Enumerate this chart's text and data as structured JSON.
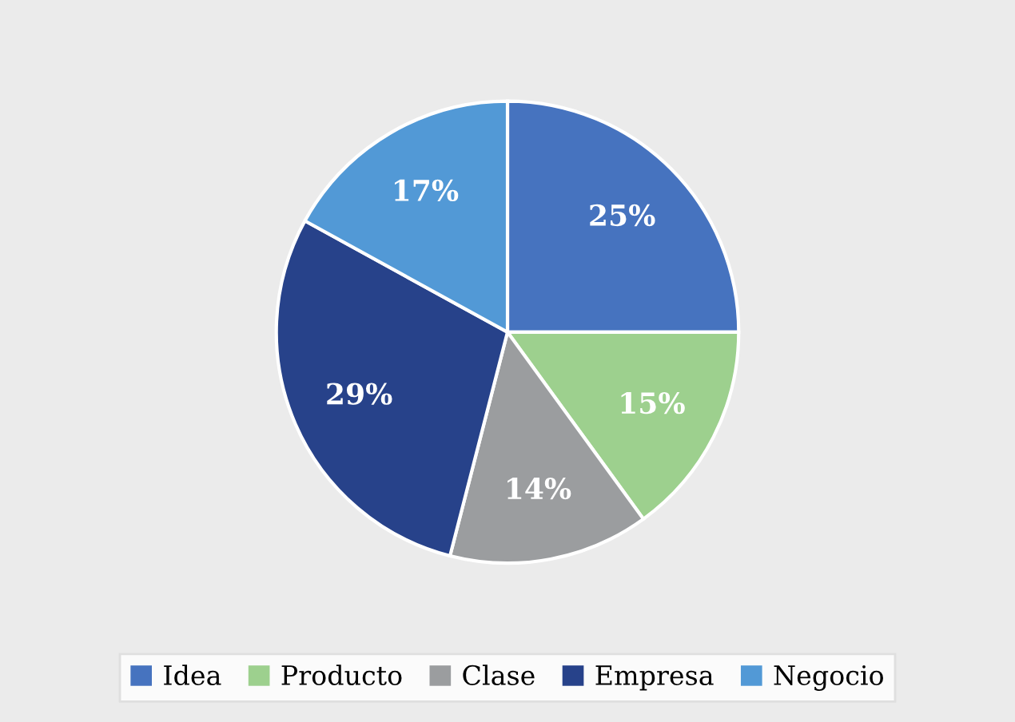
{
  "chart_data": {
    "type": "pie",
    "categories": [
      "Idea",
      "Producto",
      "Clase",
      "Empresa",
      "Negocio"
    ],
    "values": [
      25,
      15,
      14,
      29,
      17
    ],
    "colors": [
      "#4673bf",
      "#9dd08e",
      "#9b9d9f",
      "#27428a",
      "#5299d6"
    ],
    "value_labels": [
      "25%",
      "15%",
      "14%",
      "29%",
      "17%"
    ],
    "legend": "bottom"
  }
}
